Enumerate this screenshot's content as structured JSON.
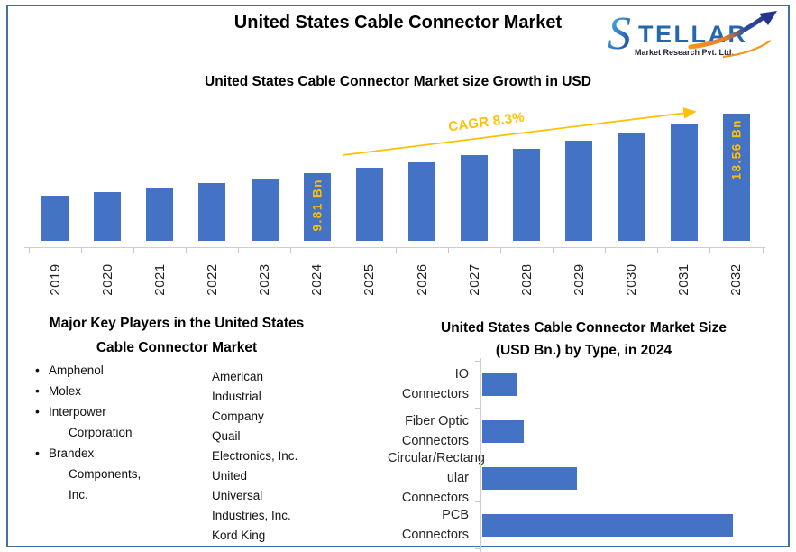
{
  "header": {
    "title": "United States Cable Connector Market",
    "logo": {
      "brand_initial": "S",
      "brand_rest": "TELLAR",
      "tagline": "Market Research Pvt. Ltd."
    }
  },
  "colors": {
    "bar_blue": "#4472C4",
    "accent_gold": "#FFC000",
    "frame_border": "#41719C",
    "logo_blue": "#2566AF",
    "logo_orange": "#F7941D"
  },
  "chart_data": [
    {
      "type": "bar",
      "title": "United States Cable Connector Market size Growth in USD",
      "categories": [
        "2019",
        "2020",
        "2021",
        "2022",
        "2023",
        "2024",
        "2025",
        "2026",
        "2027",
        "2028",
        "2029",
        "2030",
        "2031",
        "2032"
      ],
      "values": [
        6.59,
        7.13,
        7.72,
        8.36,
        9.06,
        9.81,
        10.62,
        11.51,
        12.46,
        13.49,
        14.61,
        15.83,
        17.14,
        18.56
      ],
      "unit": "USD Bn",
      "data_labels": {
        "2024": "9.81 Bn",
        "2032": "18.56 Bn"
      },
      "annotation": "CAGR 8.3%",
      "xlabel": "",
      "ylabel": "",
      "value_axis_visible": false,
      "grid": false,
      "legend": false,
      "bar_color": "#4472C4",
      "data_label_color": "#FFC000"
    },
    {
      "type": "bar",
      "orientation": "horizontal",
      "title": "United States Cable Connector Market Size (USD Bn.) by Type, in 2024",
      "title_display": "United States Cable Connector Market Size\n(USD Bn.) by Type, in 2024",
      "categories": [
        "IO Connectors",
        "Fiber Optic Connectors",
        "Circular/Rectangular Connectors",
        "PCB Connectors"
      ],
      "category_display": [
        "IO Connectors",
        "Fiber Optic\nConnectors",
        "Circular/Rectang\nular Connectors",
        "PCB Connectors"
      ],
      "values": [
        0.8,
        0.95,
        2.2,
        5.8
      ],
      "values_estimated": true,
      "unit": "USD Bn",
      "value_axis_visible": false,
      "grid": false,
      "legend": false,
      "bar_color": "#4472C4"
    }
  ],
  "sections": {
    "key_players": {
      "title": "Major Key Players in the United States Cable Connector Market",
      "title_display": "Major Key Players in the United States\nCable Connector Market",
      "bullet": "•",
      "col1": [
        [
          "Amphenol"
        ],
        [
          "Molex"
        ],
        [
          "Interpower",
          "Corporation"
        ],
        [
          "Brandex",
          "Components,",
          "Inc."
        ]
      ],
      "col2": [
        [
          "American",
          "Industrial",
          "Company"
        ],
        [
          "Quail",
          "Electronics, Inc."
        ],
        [
          "United",
          "Universal",
          "Industries, Inc."
        ],
        [
          "Kord King"
        ]
      ]
    }
  }
}
